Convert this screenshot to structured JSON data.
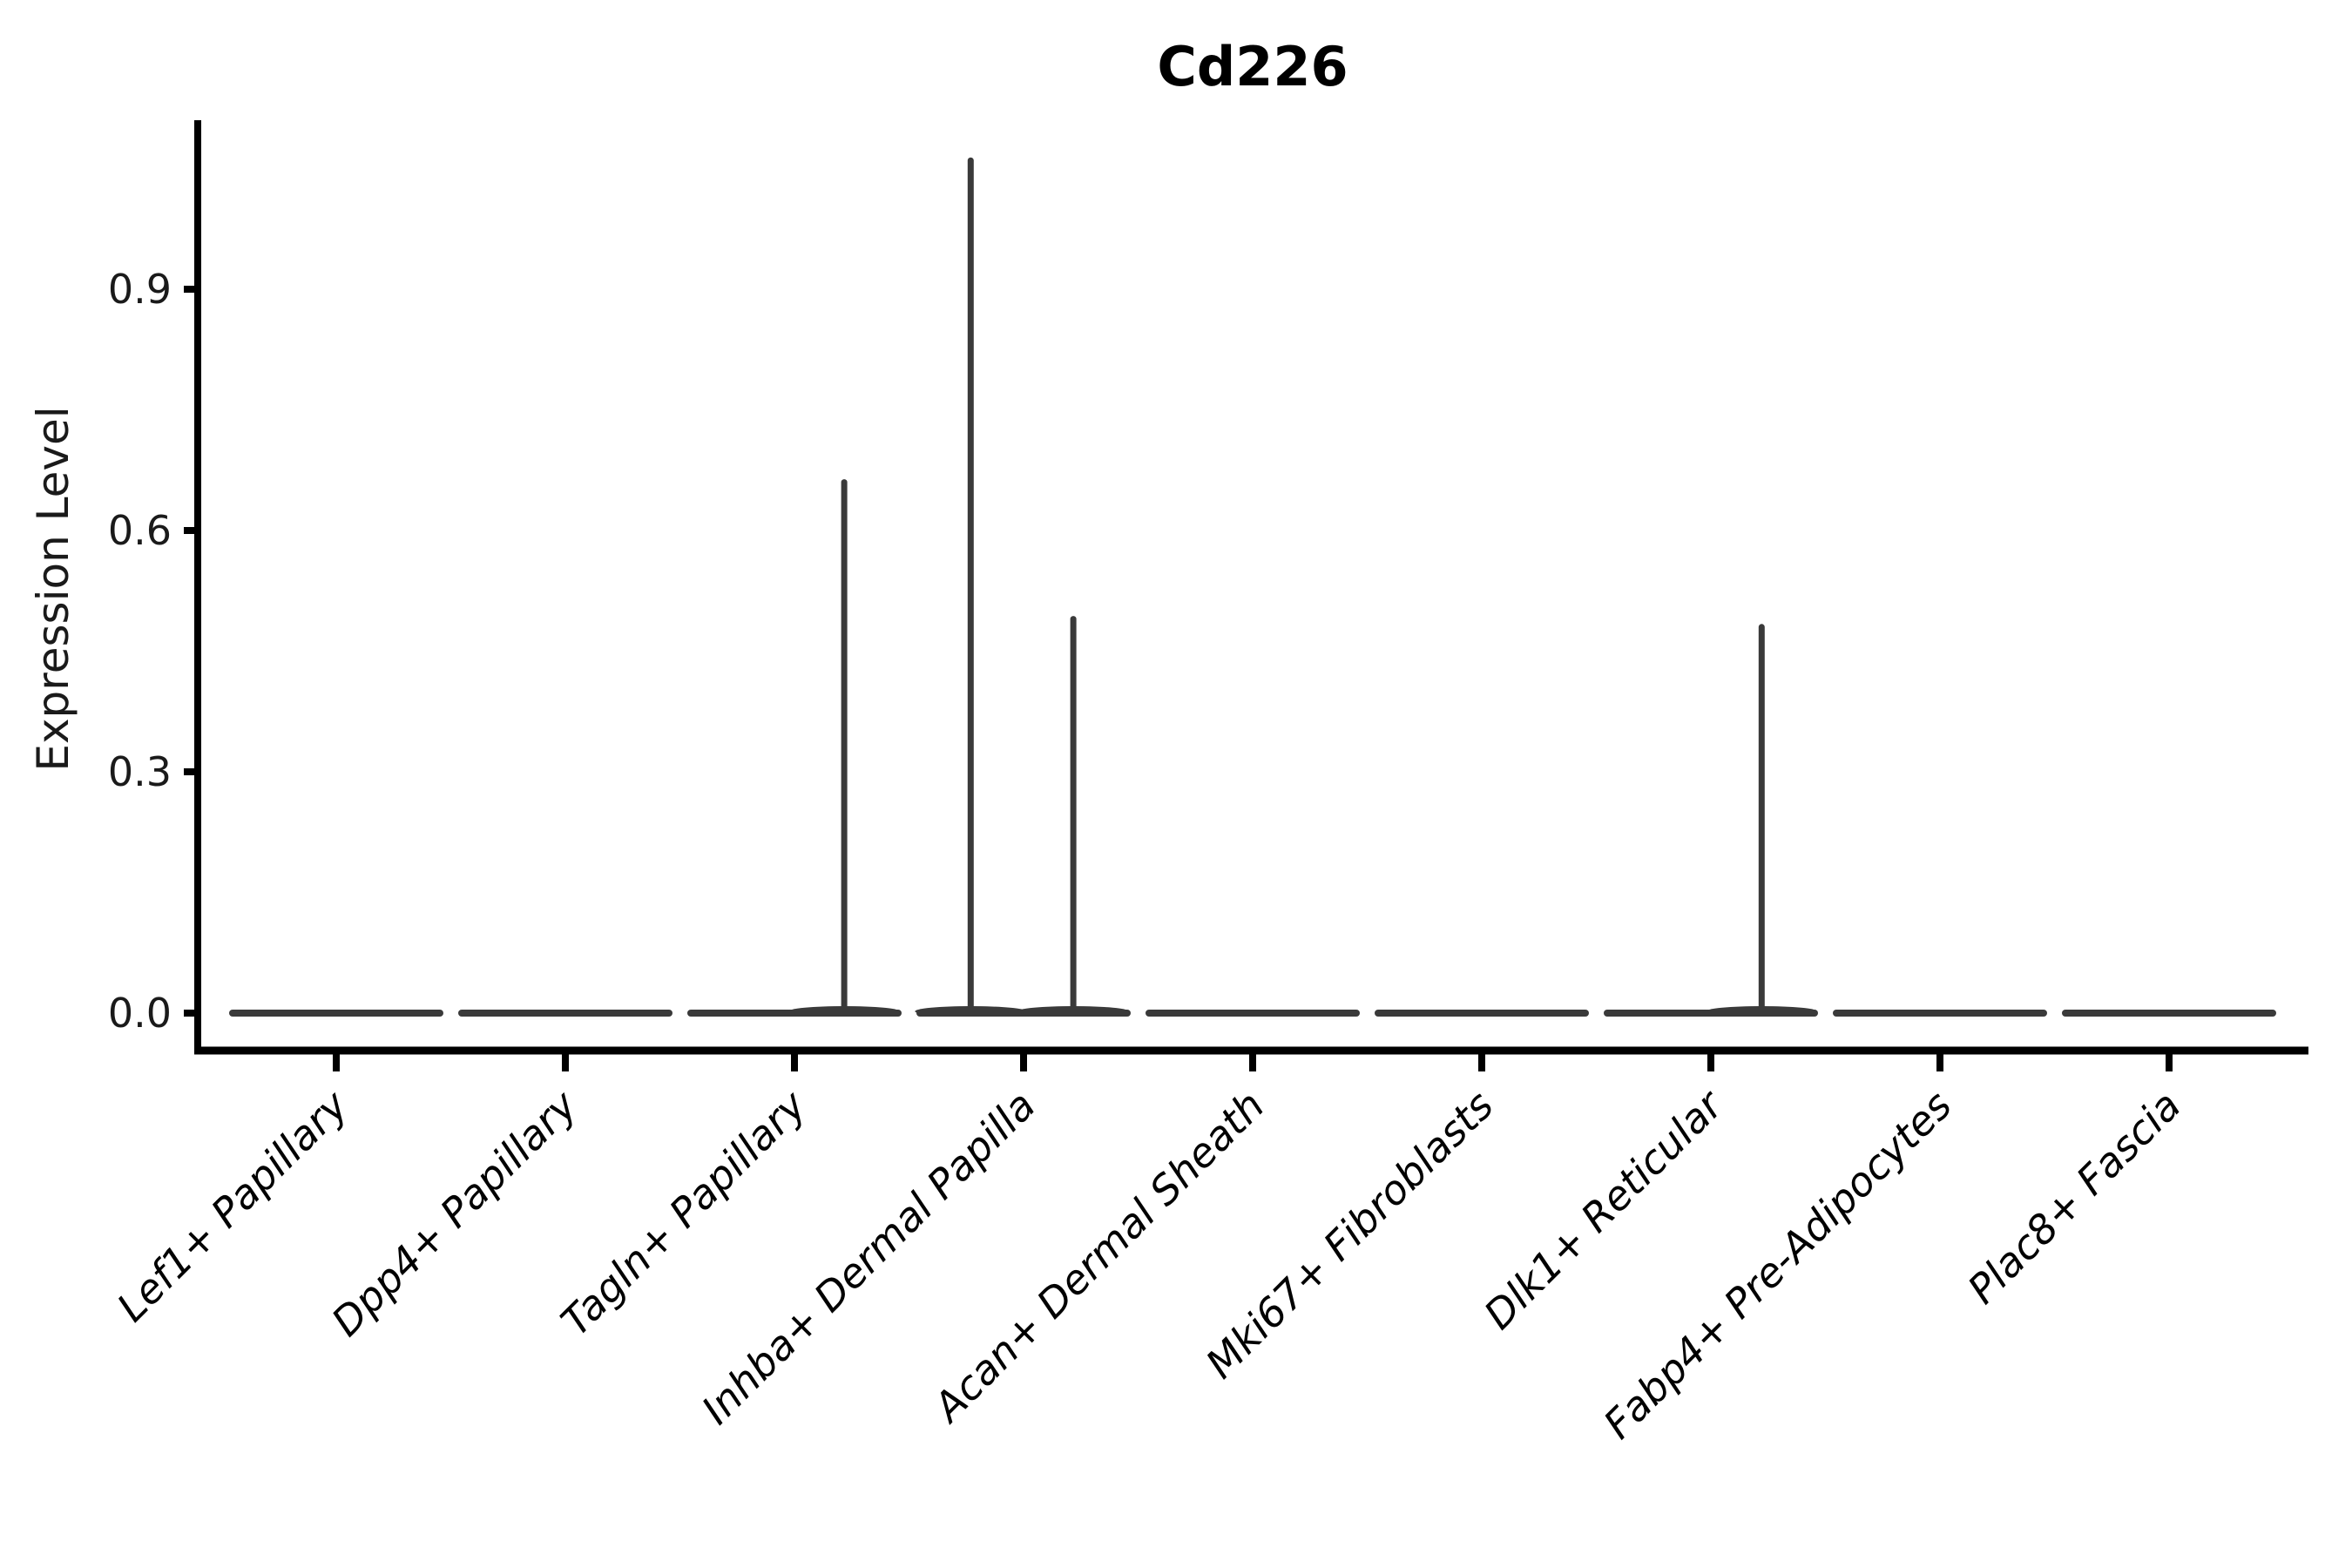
{
  "figure": {
    "title": "Cd226",
    "background": "#ffffff"
  },
  "chart_data": {
    "type": "violin",
    "title": "Cd226",
    "xlabel": "",
    "ylabel": "Expression Level",
    "ylim": [
      0,
      1.11
    ],
    "yticks": [
      0.0,
      0.3,
      0.6,
      0.9
    ],
    "ytick_labels": [
      "0.0",
      "0.3",
      "0.6",
      "0.9"
    ],
    "grid": false,
    "legend": "none",
    "axis_color": "#000000",
    "violin_color": "#3a3a3a",
    "categories": [
      "Lef1+ Papillary",
      "Dpp4+ Papillary",
      "Tagln+ Papillary",
      "Inhba+ Dermal Papilla",
      "Acan+ Dermal Sheath",
      "Mki67+ Fibroblasts",
      "Dlk1+ Reticular",
      "Fabp4+ Pre-Adipocytes",
      "Plac8+ Fascia"
    ],
    "series": [
      {
        "name": "Lef1+ Papillary",
        "bulk_at": 0.0,
        "max_expression": 0.0,
        "spikes": []
      },
      {
        "name": "Dpp4+ Papillary",
        "bulk_at": 0.0,
        "max_expression": 0.0,
        "spikes": []
      },
      {
        "name": "Tagln+ Papillary",
        "bulk_at": 0.0,
        "max_expression": 0.66,
        "spikes": [
          {
            "value": 0.66,
            "x_offset_frac": 0.48
          }
        ]
      },
      {
        "name": "Inhba+ Dermal Papilla",
        "bulk_at": 0.0,
        "max_expression": 1.06,
        "spikes": [
          {
            "value": 1.06,
            "x_offset_frac": -0.51
          },
          {
            "value": 0.49,
            "x_offset_frac": 0.48
          }
        ]
      },
      {
        "name": "Acan+ Dermal Sheath",
        "bulk_at": 0.0,
        "max_expression": 0.0,
        "spikes": []
      },
      {
        "name": "Mki67+ Fibroblasts",
        "bulk_at": 0.0,
        "max_expression": 0.0,
        "spikes": []
      },
      {
        "name": "Dlk1+ Reticular",
        "bulk_at": 0.0,
        "max_expression": 0.48,
        "spikes": [
          {
            "value": 0.48,
            "x_offset_frac": 0.49
          }
        ]
      },
      {
        "name": "Fabp4+ Pre-Adipocytes",
        "bulk_at": 0.0,
        "max_expression": 0.0,
        "spikes": []
      },
      {
        "name": "Plac8+ Fascia",
        "bulk_at": 0.0,
        "max_expression": 0.0,
        "spikes": []
      }
    ]
  }
}
